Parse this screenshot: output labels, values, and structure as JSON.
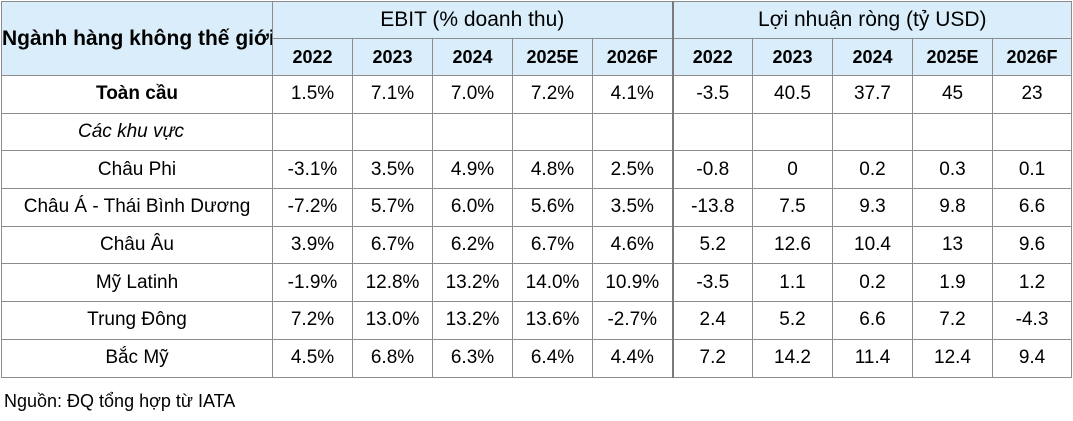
{
  "table": {
    "title": "Ngành hàng không thế giới",
    "groups": [
      "EBIT (% doanh thu)",
      "Lợi nhuận ròng (tỷ USD)"
    ],
    "years": [
      "2022",
      "2023",
      "2024",
      "2025E",
      "2026F"
    ],
    "rows": [
      {
        "label": "Toàn cầu",
        "ebit": [
          "1.5%",
          "7.1%",
          "7.0%",
          "7.2%",
          "4.1%"
        ],
        "profit": [
          "-3.5",
          "40.5",
          "37.7",
          "45",
          "23"
        ]
      },
      {
        "label": "Các khu vực",
        "ebit": [
          "",
          "",
          "",
          "",
          ""
        ],
        "profit": [
          "",
          "",
          "",
          "",
          ""
        ]
      },
      {
        "label": "Châu Phi",
        "ebit": [
          "-3.1%",
          "3.5%",
          "4.9%",
          "4.8%",
          "2.5%"
        ],
        "profit": [
          "-0.8",
          "0",
          "0.2",
          "0.3",
          "0.1"
        ]
      },
      {
        "label": "Châu Á - Thái Bình Dương",
        "ebit": [
          "-7.2%",
          "5.7%",
          "6.0%",
          "5.6%",
          "3.5%"
        ],
        "profit": [
          "-13.8",
          "7.5",
          "9.3",
          "9.8",
          "6.6"
        ]
      },
      {
        "label": "Châu Âu",
        "ebit": [
          "3.9%",
          "6.7%",
          "6.2%",
          "6.7%",
          "4.6%"
        ],
        "profit": [
          "5.2",
          "12.6",
          "10.4",
          "13",
          "9.6"
        ]
      },
      {
        "label": "Mỹ Latinh",
        "ebit": [
          "-1.9%",
          "12.8%",
          "13.2%",
          "14.0%",
          "10.9%"
        ],
        "profit": [
          "-3.5",
          "1.1",
          "0.2",
          "1.9",
          "1.2"
        ]
      },
      {
        "label": "Trung Đông",
        "ebit": [
          "7.2%",
          "13.0%",
          "13.2%",
          "13.6%",
          "-2.7%"
        ],
        "profit": [
          "2.4",
          "5.2",
          "6.6",
          "7.2",
          "-4.3"
        ]
      },
      {
        "label": "Bắc Mỹ",
        "ebit": [
          "4.5%",
          "6.8%",
          "6.3%",
          "6.4%",
          "4.4%"
        ],
        "profit": [
          "7.2",
          "14.2",
          "11.4",
          "12.4",
          "9.4"
        ]
      }
    ]
  },
  "source": "Nguồn: ĐQ tổng hợp từ IATA"
}
